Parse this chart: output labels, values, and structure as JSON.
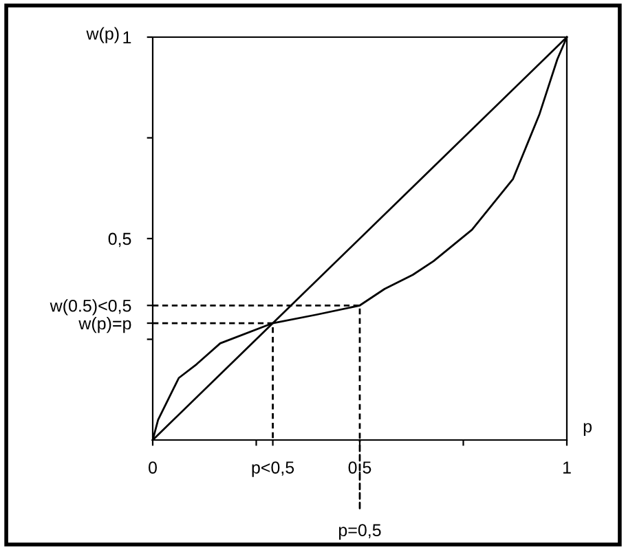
{
  "chart_data": {
    "type": "line",
    "xlabel": "p",
    "ylabel": "w(p)",
    "xlim": [
      0,
      1
    ],
    "ylim": [
      0,
      1
    ],
    "xticks": [
      0,
      {
        "value": 0.25,
        "label": null
      },
      {
        "value": 0.29,
        "label": "p<0,5"
      },
      {
        "value": 0.5,
        "label": "0,5"
      },
      {
        "value": 0.75,
        "label": null
      },
      1
    ],
    "yticks": [
      {
        "value": 0.25,
        "label": null
      },
      {
        "value": 0.29,
        "label": "w(p)=p"
      },
      {
        "value": 0.334,
        "label": "w(0.5)<0,5"
      },
      {
        "value": 0.5,
        "label": "0,5"
      },
      {
        "value": 0.75,
        "label": null
      },
      1
    ],
    "series": [
      {
        "color": "#000000",
        "x": [
          0,
          1
        ],
        "values": [
          0,
          1
        ]
      },
      {
        "color": "#000000",
        "x": [
          0,
          0.013,
          0.063,
          0.106,
          0.163,
          0.29,
          0.395,
          0.5,
          0.56,
          0.628,
          0.678,
          0.771,
          0.87,
          0.934,
          0.977,
          1
        ],
        "values": [
          0,
          0.05,
          0.154,
          0.188,
          0.24,
          0.29,
          0.311,
          0.334,
          0.375,
          0.41,
          0.444,
          0.522,
          0.648,
          0.809,
          0.945,
          1
        ]
      },
      {
        "color": "#000000",
        "line_style": "dashed",
        "x": [
          0,
          0.29,
          0.29
        ],
        "values": [
          0.29,
          0.29,
          0
        ]
      },
      {
        "color": "#000000",
        "line_style": "dashed",
        "x": [
          0,
          0.5,
          0.5
        ],
        "values": [
          0.334,
          0.334,
          0
        ]
      }
    ],
    "annotations": [
      {
        "text": "p=0,5",
        "x": 0.5,
        "y": 0
      }
    ],
    "grid": false,
    "legend": false,
    "marker": "none"
  }
}
